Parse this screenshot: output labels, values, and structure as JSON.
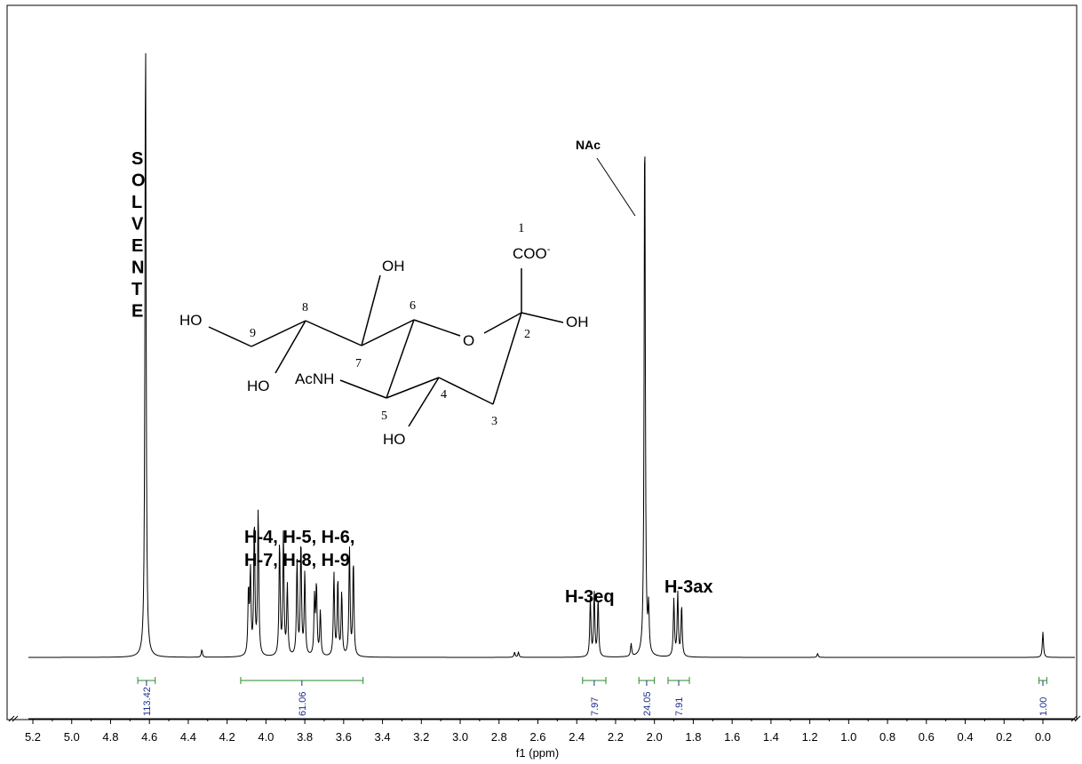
{
  "chart_data": {
    "type": "line",
    "title": "",
    "xlabel": "f1 (ppm)",
    "ylabel": "",
    "xlim": [
      5.25,
      -0.08
    ],
    "x_reversed": true,
    "grid": false,
    "x_ticks": [
      "5.2",
      "5.0",
      "4.8",
      "4.6",
      "4.4",
      "4.2",
      "4.0",
      "3.8",
      "3.6",
      "3.4",
      "3.2",
      "3.0",
      "2.8",
      "2.6",
      "2.4",
      "2.2",
      "2.0",
      "1.8",
      "1.6",
      "1.4",
      "1.2",
      "1.0",
      "0.8",
      "0.6",
      "0.4",
      "0.2",
      "0.0"
    ],
    "peaks": [
      {
        "x": 4.62,
        "y": 1.0
      },
      {
        "x": 4.33,
        "y": 0.012
      },
      {
        "x": 4.09,
        "y": 0.1
      },
      {
        "x": 4.08,
        "y": 0.13
      },
      {
        "x": 4.06,
        "y": 0.21
      },
      {
        "x": 4.04,
        "y": 0.23
      },
      {
        "x": 3.93,
        "y": 0.18
      },
      {
        "x": 3.91,
        "y": 0.19
      },
      {
        "x": 3.89,
        "y": 0.11
      },
      {
        "x": 3.84,
        "y": 0.15
      },
      {
        "x": 3.82,
        "y": 0.18
      },
      {
        "x": 3.8,
        "y": 0.13
      },
      {
        "x": 3.75,
        "y": 0.09
      },
      {
        "x": 3.74,
        "y": 0.11
      },
      {
        "x": 3.72,
        "y": 0.07
      },
      {
        "x": 3.65,
        "y": 0.13
      },
      {
        "x": 3.63,
        "y": 0.12
      },
      {
        "x": 3.61,
        "y": 0.1
      },
      {
        "x": 3.57,
        "y": 0.17
      },
      {
        "x": 3.55,
        "y": 0.15
      },
      {
        "x": 2.72,
        "y": 0.008
      },
      {
        "x": 2.7,
        "y": 0.008
      },
      {
        "x": 2.33,
        "y": 0.09
      },
      {
        "x": 2.31,
        "y": 0.1
      },
      {
        "x": 2.29,
        "y": 0.09
      },
      {
        "x": 2.12,
        "y": 0.02
      },
      {
        "x": 2.05,
        "y": 0.86
      },
      {
        "x": 2.03,
        "y": 0.07
      },
      {
        "x": 1.9,
        "y": 0.09
      },
      {
        "x": 1.88,
        "y": 0.1
      },
      {
        "x": 1.86,
        "y": 0.08
      },
      {
        "x": 1.16,
        "y": 0.006
      },
      {
        "x": 0.0,
        "y": 0.04
      }
    ],
    "integrals": [
      {
        "from": 4.66,
        "to": 4.57,
        "label": "113.42"
      },
      {
        "from": 4.13,
        "to": 3.5,
        "label": "61.06"
      },
      {
        "from": 2.37,
        "to": 2.25,
        "label": "7.97"
      },
      {
        "from": 2.08,
        "to": 2.0,
        "label": "24.05"
      },
      {
        "from": 1.93,
        "to": 1.82,
        "label": "7.91"
      },
      {
        "from": 0.02,
        "to": -0.02,
        "label": "1.00"
      }
    ],
    "annotations": {
      "solvent": [
        "S",
        "O",
        "L",
        "V",
        "E",
        "N",
        "T",
        "E"
      ],
      "nac": "NAc",
      "region_line1": "H-4, H-5, H-6,",
      "region_line2": "H-7, H-8, H-9",
      "h3eq": "H-3eq",
      "h3ax": "H-3ax"
    }
  },
  "structure": {
    "c1": "1",
    "coo": "COO",
    "coo_charge": "-",
    "oh_c7": "OH",
    "oh_c2": "OH",
    "oh_c9": "HO",
    "oh_c8": "HO",
    "oh_c4": "HO",
    "acnh": "AcNH",
    "ring_o": "O",
    "n2": "2",
    "n3": "3",
    "n4": "4",
    "n5": "5",
    "n6": "6",
    "n7": "7",
    "n8": "8",
    "n9": "9"
  }
}
